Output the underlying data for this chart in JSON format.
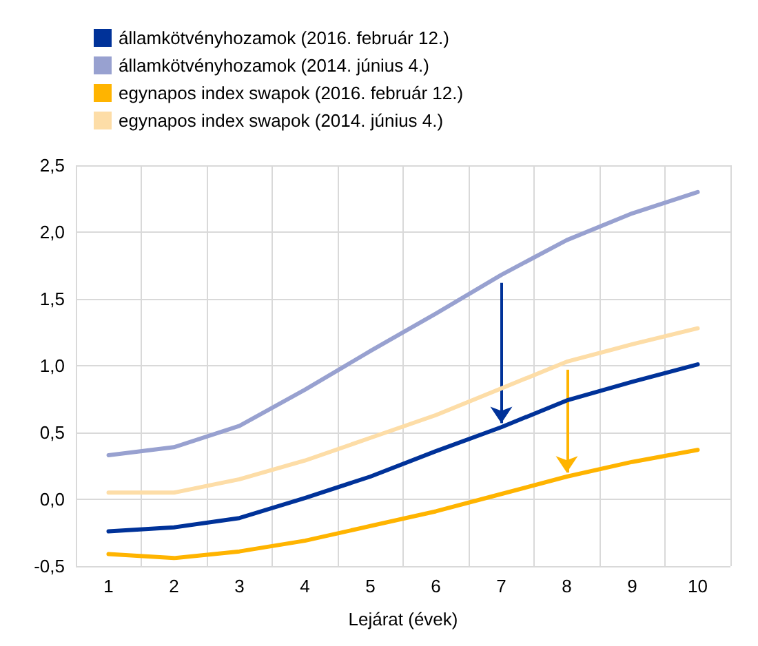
{
  "chart_data": {
    "type": "line",
    "xlabel": "Lejárat (évek)",
    "categories": [
      "1",
      "2",
      "3",
      "4",
      "5",
      "6",
      "7",
      "8",
      "9",
      "10"
    ],
    "series": [
      {
        "name": "államkötvényhozamok (2016. február 12.)",
        "color": "#003299",
        "values": [
          -0.24,
          -0.21,
          -0.14,
          0.01,
          0.17,
          0.36,
          0.54,
          0.74,
          0.88,
          1.01
        ]
      },
      {
        "name": "államkötvényhozamok (2014. június 4.)",
        "color": "#98a1d0",
        "values": [
          0.33,
          0.39,
          0.55,
          0.82,
          1.11,
          1.39,
          1.68,
          1.94,
          2.14,
          2.3
        ]
      },
      {
        "name": "egynapos index swapok (2016. február 12.)",
        "color": "#ffb400",
        "values": [
          -0.41,
          -0.44,
          -0.39,
          -0.31,
          -0.2,
          -0.09,
          0.04,
          0.17,
          0.28,
          0.37
        ]
      },
      {
        "name": "egynapos index swapok (2014. június 4.)",
        "color": "#fddda7",
        "values": [
          0.05,
          0.05,
          0.15,
          0.29,
          0.46,
          0.63,
          0.83,
          1.03,
          1.16,
          1.28
        ]
      }
    ],
    "ylim": [
      -0.5,
      2.5
    ],
    "yticks": [
      {
        "value": -0.5,
        "label": "-0,5"
      },
      {
        "value": 0,
        "label": "0,0"
      },
      {
        "value": 0.5,
        "label": "0,5"
      },
      {
        "value": 1,
        "label": "1,0"
      },
      {
        "value": 1.5,
        "label": "1,5"
      },
      {
        "value": 2,
        "label": "2,0"
      },
      {
        "value": 2.5,
        "label": "2,5"
      }
    ],
    "grid": true,
    "legend": "top left",
    "marker": "none",
    "line_style": "solid"
  }
}
